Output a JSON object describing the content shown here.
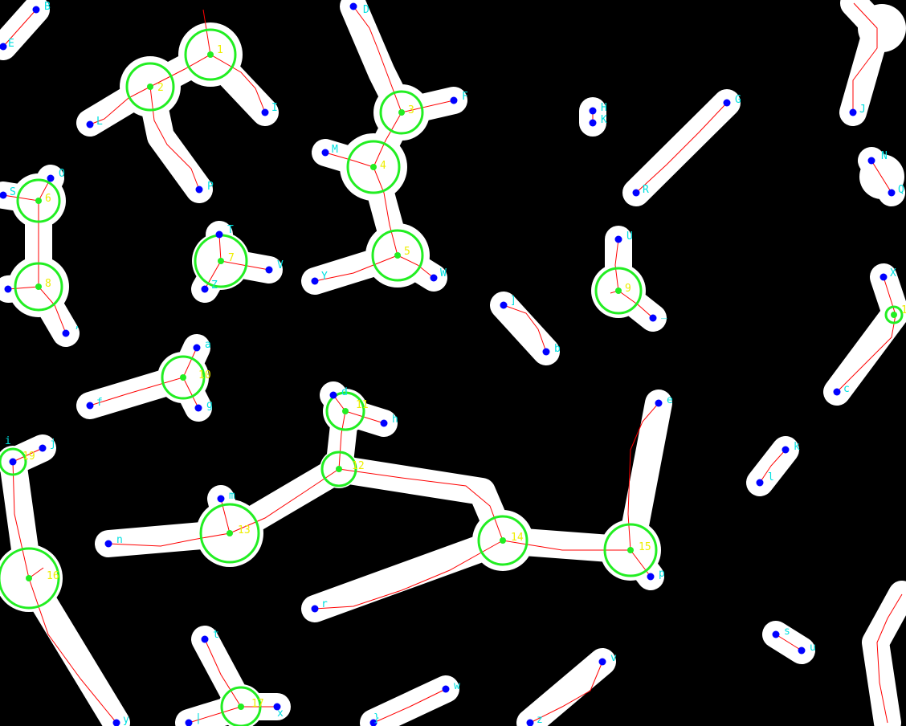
{
  "diagram": {
    "background": "#000000",
    "blob_color": "#ffffff",
    "edge_color": "#ff0000",
    "ring_color": "#22ee22",
    "endpoint_color": "#0000ff",
    "endpoint_label_color": "#00e0e0",
    "ring_label_color": "#eeee00",
    "junction_labels": [
      "1",
      "2",
      "3",
      "4",
      "5",
      "6",
      "7",
      "8",
      "9",
      "10",
      "11",
      "12",
      "13",
      "14",
      "15",
      "16",
      "17",
      "18",
      "19"
    ],
    "endpoint_labels": [
      "B",
      "C",
      "D",
      "E",
      "F",
      "G",
      "H",
      "I",
      "J",
      "K",
      "L",
      "M",
      "N",
      "O",
      "P",
      "Q",
      "R",
      "S",
      "T",
      "U",
      "V",
      "W",
      "X",
      "Y",
      "Z",
      "]",
      "_",
      "a",
      "b",
      "c",
      "d",
      "e",
      "f",
      "g",
      "h",
      "i",
      "j",
      "k",
      "l",
      "m",
      "n",
      "o",
      "p",
      "q",
      "r",
      "s",
      "t",
      "u",
      "v",
      "w",
      "x",
      "y",
      "z",
      "|"
    ]
  }
}
